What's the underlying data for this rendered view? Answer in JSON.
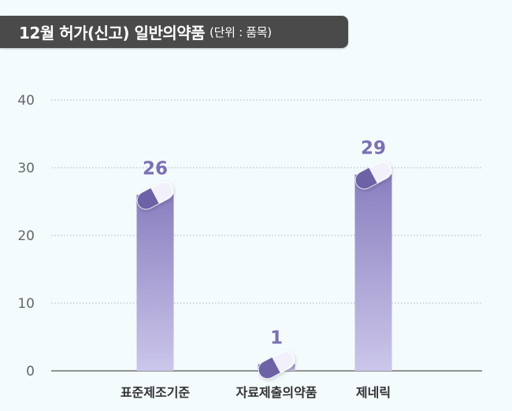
{
  "title": {
    "main": "12월 허가(신고) 일반의약품",
    "unit": "(단위 : 품목)"
  },
  "colors": {
    "bar_top": "#8a7fbf",
    "bar_bottom": "#cbc6ea",
    "value_label": "#7a70b3",
    "grid": "#a9b3c9",
    "axis": "#555555",
    "tick_label": "#666666",
    "category_label": "#333333",
    "capsule_dark": "#6d62a6",
    "capsule_light": "#f2f1fb"
  },
  "chart_data": {
    "type": "bar",
    "categories": [
      "표준제조기준",
      "자료제출의약품",
      "제네릭"
    ],
    "values": [
      26,
      1,
      29
    ],
    "data_labels": [
      "26",
      "1",
      "29"
    ],
    "ylim": [
      0,
      40
    ],
    "yticks": [
      "0",
      "10",
      "20",
      "30",
      "40"
    ],
    "ytick_values": [
      0,
      10,
      20,
      30,
      40
    ],
    "xlabel": "",
    "ylabel": "",
    "grid": true,
    "legend": "none",
    "bar_decoration": "capsule-icon"
  }
}
